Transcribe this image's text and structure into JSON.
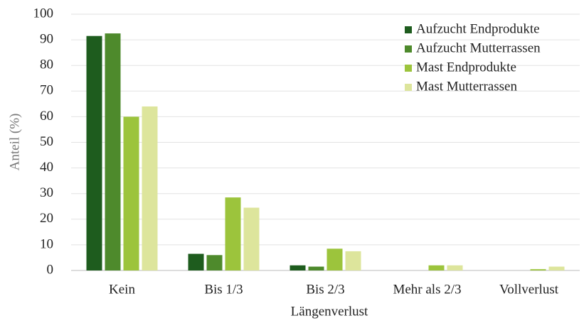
{
  "chart_data": {
    "type": "bar",
    "x_label": "Längenverlust",
    "y_label": "Anteil (%)",
    "categories": [
      "Kein",
      "Bis 1/3",
      "Bis 2/3",
      "Mehr als 2/3",
      "Vollverlust"
    ],
    "series": [
      {
        "name": "Aufzucht Endprodukte",
        "color": "#1e5c1e",
        "values": [
          91.5,
          6.5,
          2,
          0,
          0
        ]
      },
      {
        "name": "Aufzucht Mutterrassen",
        "color": "#4e8a2c",
        "values": [
          92.5,
          6,
          1.5,
          0,
          0
        ]
      },
      {
        "name": "Mast Endprodukte",
        "color": "#9cc43c",
        "values": [
          60,
          28.5,
          8.5,
          2,
          0.5
        ]
      },
      {
        "name": "Mast Mutterrassen",
        "color": "#dde59c",
        "values": [
          64,
          24.5,
          7.5,
          2,
          1.5
        ]
      }
    ],
    "ylim": [
      0,
      100
    ],
    "yticks": [
      0,
      10,
      20,
      30,
      40,
      50,
      60,
      70,
      80,
      90,
      100
    ],
    "grid": true,
    "legend": "top-right"
  }
}
